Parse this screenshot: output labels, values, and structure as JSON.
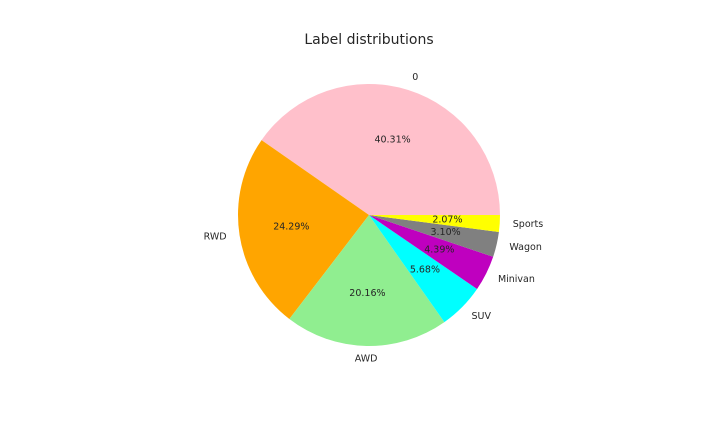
{
  "chart_data": {
    "type": "pie",
    "title": "Label distributions",
    "slices": [
      {
        "label": "0",
        "value": 40.31,
        "pct_label": "40.31%",
        "color": "#ffc0cb"
      },
      {
        "label": "RWD",
        "value": 24.29,
        "pct_label": "24.29%",
        "color": "#ffa500"
      },
      {
        "label": "AWD",
        "value": 20.16,
        "pct_label": "20.16%",
        "color": "#90ee90"
      },
      {
        "label": "SUV",
        "value": 5.68,
        "pct_label": "5.68%",
        "color": "#00ffff"
      },
      {
        "label": "Minivan",
        "value": 4.39,
        "pct_label": "4.39%",
        "color": "#bf00bf"
      },
      {
        "label": "Wagon",
        "value": 3.1,
        "pct_label": "3.10%",
        "color": "#808080"
      },
      {
        "label": "Sports",
        "value": 2.07,
        "pct_label": "2.07%",
        "color": "#ffff00"
      }
    ],
    "start_angle_deg": 0,
    "direction": "counterclockwise",
    "legend": "none"
  }
}
